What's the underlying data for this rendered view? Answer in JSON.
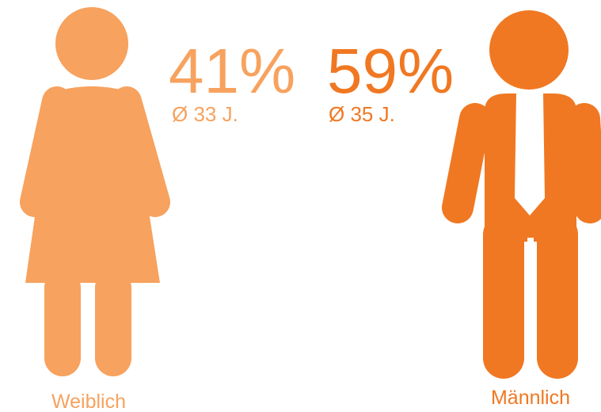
{
  "female": {
    "percent": "41%",
    "age": "Ø 33 J.",
    "label": "Weiblich"
  },
  "male": {
    "percent": "59%",
    "age": "Ø 35 J.",
    "label": "Männlich"
  }
}
